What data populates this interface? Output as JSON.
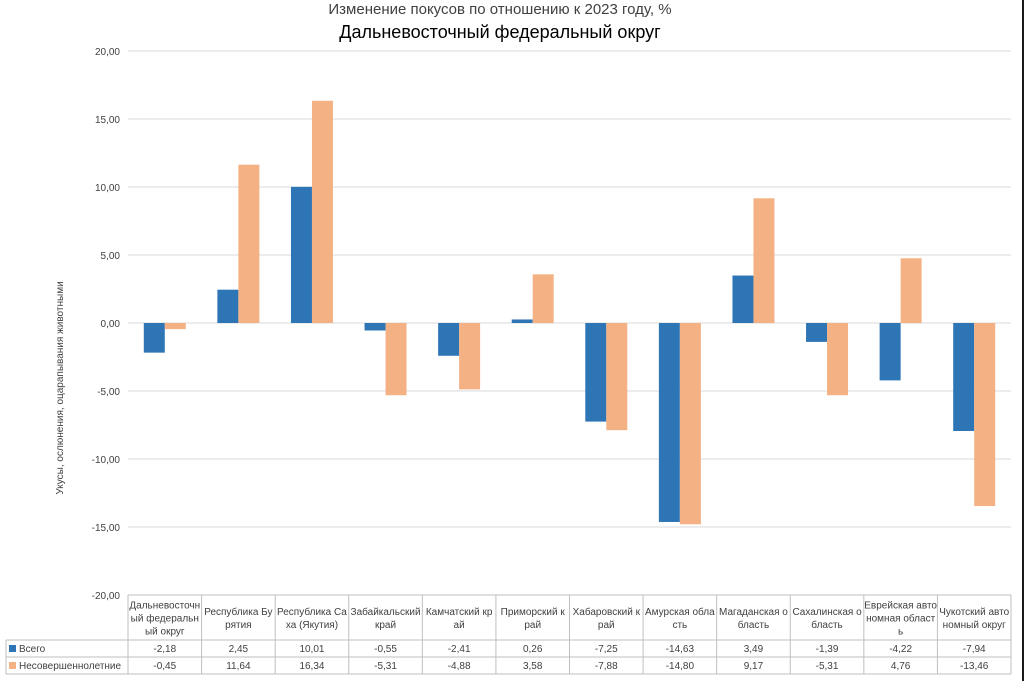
{
  "chart_data": {
    "type": "bar",
    "title": "Изменение покусов по отношению к 2023 году, %",
    "subtitle": "Дальневосточный федеральный округ",
    "xlabel": "",
    "ylabel": "Укусы, ослюнения, оцарапывания животными",
    "ylim": [
      -20,
      20
    ],
    "yticks": [
      20,
      15,
      10,
      5,
      0,
      -5,
      -10,
      -15,
      -20
    ],
    "ytick_labels": [
      "20,00",
      "15,00",
      "10,00",
      "5,00",
      "0,00",
      "-5,00",
      "-10,00",
      "-15,00",
      "-20,00"
    ],
    "grid": true,
    "legend": "data-table",
    "categories": [
      "Дальневосточный федеральный округ",
      "Республика Бурятия",
      "Республика Саха (Якутия)",
      "Забайкальский край",
      "Камчатский край",
      "Приморский край",
      "Хабаровский край",
      "Амурская область",
      "Магаданская область",
      "Сахалинская область",
      "Еврейская автономная область",
      "Чукотский автономный округ"
    ],
    "category_label_lines": [
      [
        "Дальневосточн",
        "ый федеральн",
        "ый округ"
      ],
      [
        "Республика Бу",
        "рятия"
      ],
      [
        "Республика Са",
        "ха (Якутия)"
      ],
      [
        "Забайкальский",
        "край"
      ],
      [
        "Камчатский кр",
        "ай"
      ],
      [
        "Приморский к",
        "рай"
      ],
      [
        "Хабаровский к",
        "рай"
      ],
      [
        "Амурская обла",
        "сть"
      ],
      [
        "Магаданская о",
        "бласть"
      ],
      [
        "Сахалинская о",
        "бласть"
      ],
      [
        "Еврейская авто",
        "номная област",
        "ь"
      ],
      [
        "Чукотский авто",
        "номный округ"
      ]
    ],
    "series": [
      {
        "name": "Всего",
        "color": "#2e75b6",
        "values": [
          -2.18,
          2.45,
          10.01,
          -0.55,
          -2.41,
          0.26,
          -7.25,
          -14.63,
          3.49,
          -1.39,
          -4.22,
          -7.94
        ],
        "labels": [
          "-2,18",
          "2,45",
          "10,01",
          "-0,55",
          "-2,41",
          "0,26",
          "-7,25",
          "-14,63",
          "3,49",
          "-1,39",
          "-4,22",
          "-7,94"
        ]
      },
      {
        "name": "Несовершеннолетние",
        "color": "#f4b183",
        "values": [
          -0.45,
          11.64,
          16.34,
          -5.31,
          -4.88,
          3.58,
          -7.88,
          -14.8,
          9.17,
          -5.31,
          4.76,
          -13.46
        ],
        "labels": [
          "-0,45",
          "11,64",
          "16,34",
          "-5,31",
          "-4,88",
          "3,58",
          "-7,88",
          "-14,80",
          "9,17",
          "-5,31",
          "4,76",
          "-13,46"
        ]
      }
    ]
  }
}
